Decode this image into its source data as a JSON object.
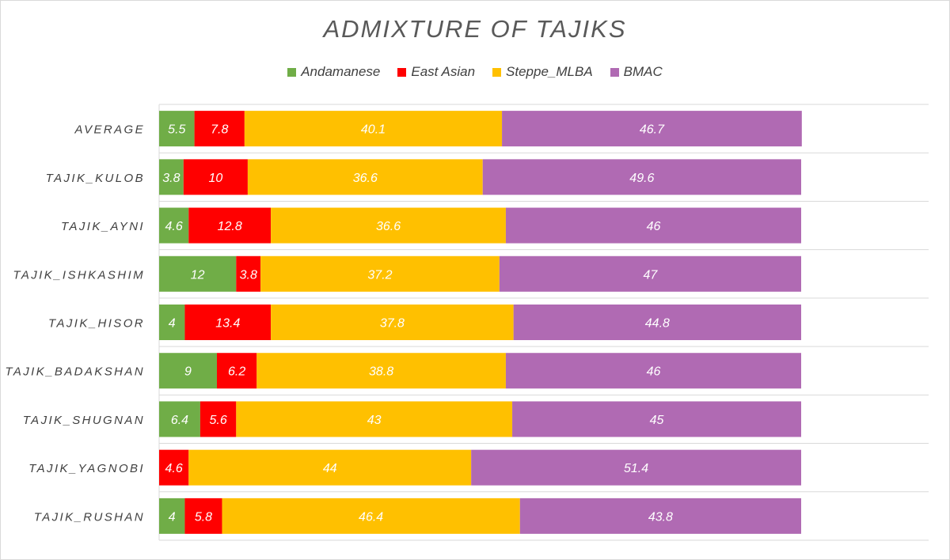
{
  "colors": {
    "Andamanese": "#70ad47",
    "East Asian": "#ff0000",
    "Steppe_MLBA": "#ffc000",
    "BMAC": "#b06ab3"
  },
  "chart_data": {
    "type": "bar",
    "orientation": "horizontal",
    "stacked": true,
    "title": "ADMIXTURE OF TAJIKS",
    "legend_position": "top",
    "grid": true,
    "categories": [
      "AVERAGE",
      "TAJIK_KULOB",
      "TAJIK_AYNI",
      "TAJIK_ISHKASHIM",
      "TAJIK_HISOR",
      "TAJIK_BADAKSHAN",
      "TAJIK_SHUGNAN",
      "TAJIK_YAGNOBI",
      "TAJIK_RUSHAN"
    ],
    "series": [
      {
        "name": "Andamanese",
        "values": [
          5.5,
          3.8,
          4.6,
          12,
          4,
          9,
          6.4,
          0,
          4
        ],
        "labels": [
          "5.5",
          "3.8",
          "4.6",
          "12",
          "4",
          "9",
          "6.4",
          "",
          "4"
        ]
      },
      {
        "name": "East Asian",
        "values": [
          7.8,
          10,
          12.8,
          3.8,
          13.4,
          6.2,
          5.6,
          4.6,
          5.8
        ],
        "labels": [
          "7.8",
          "10",
          "12.8",
          "3.8",
          "13.4",
          "6.2",
          "5.6",
          "4.6",
          "5.8"
        ]
      },
      {
        "name": "Steppe_MLBA",
        "values": [
          40.1,
          36.6,
          36.6,
          37.2,
          37.8,
          38.8,
          43,
          44,
          46.4
        ],
        "labels": [
          "40.1",
          "36.6",
          "36.6",
          "37.2",
          "37.8",
          "38.8",
          "43",
          "44",
          "46.4"
        ]
      },
      {
        "name": "BMAC",
        "values": [
          46.7,
          49.6,
          46,
          47,
          44.8,
          46,
          45,
          51.4,
          43.8
        ],
        "labels": [
          "46.7",
          "49.6",
          "46",
          "47",
          "44.8",
          "46",
          "45",
          "51.4",
          "43.8"
        ]
      }
    ],
    "xlim": [
      0,
      100
    ]
  }
}
